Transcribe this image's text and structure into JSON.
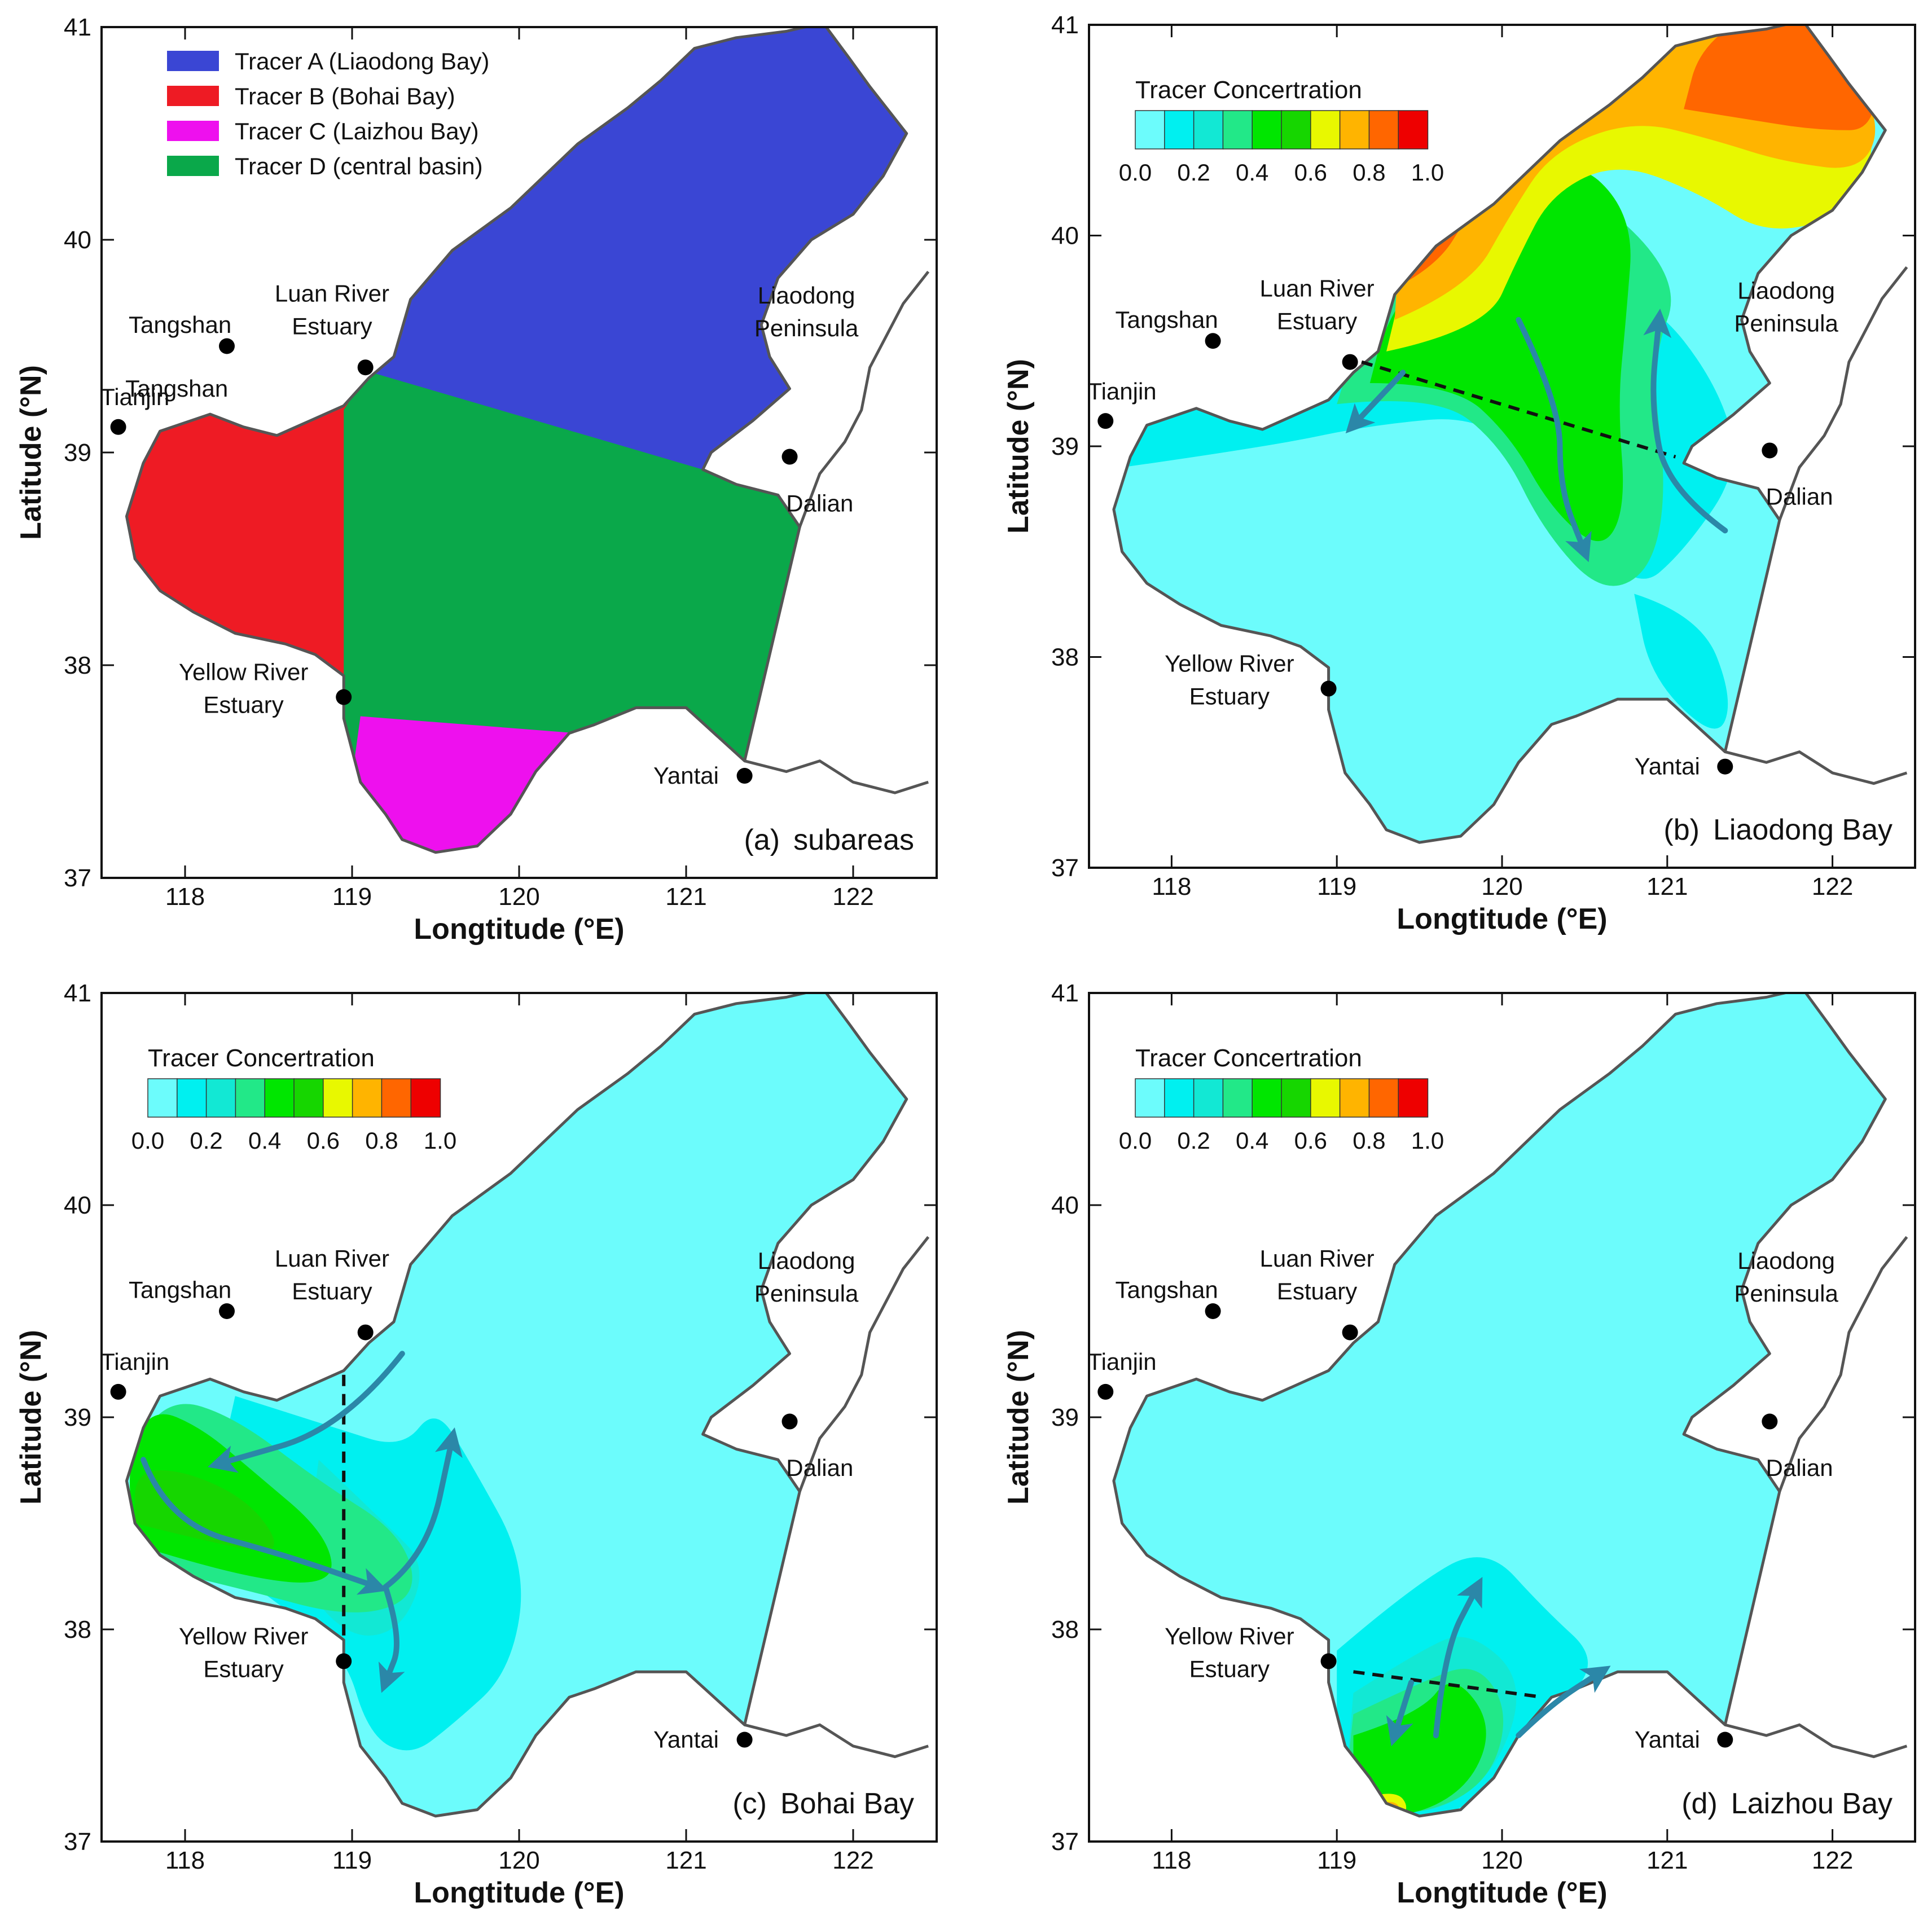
{
  "panels": [
    {
      "id": "a",
      "letter": "(a)",
      "caption": "subareas",
      "mode": "subareas",
      "legend_type": "subareas"
    },
    {
      "id": "b",
      "letter": "(b)",
      "caption": "Liaodong Bay",
      "mode": "liaodong",
      "legend_type": "colorbar"
    },
    {
      "id": "c",
      "letter": "(c)",
      "caption": "Bohai Bay",
      "mode": "bohai",
      "legend_type": "colorbar"
    },
    {
      "id": "d",
      "letter": "(d)",
      "caption": "Laizhou Bay",
      "mode": "laizhou",
      "legend_type": "colorbar"
    }
  ],
  "axes": {
    "x_label": "Longtitude (°E)",
    "y_label": "Latitude (°N)",
    "x_ticks": [
      "118",
      "119",
      "120",
      "121",
      "122"
    ],
    "x_tick_values": [
      118,
      119,
      120,
      121,
      122
    ],
    "y_ticks": [
      "37",
      "38",
      "39",
      "40",
      "41"
    ],
    "y_tick_values": [
      37,
      38,
      39,
      40,
      41
    ],
    "x_range": [
      117.5,
      122.5
    ],
    "y_range": [
      37,
      41
    ]
  },
  "subarea_legend": [
    {
      "label": "Tracer A (Liaodong Bay)",
      "color": "#3a46d4"
    },
    {
      "label": "Tracer B (Bohai Bay)",
      "color": "#ee1b24"
    },
    {
      "label": "Tracer C (Laizhou Bay)",
      "color": "#ee10ee"
    },
    {
      "label": "Tracer D (central basin)",
      "color": "#0aa84a"
    }
  ],
  "colorbar": {
    "title": "Tracer Concertration",
    "tick_labels": [
      "0.0",
      "0.2",
      "0.4",
      "0.6",
      "0.8",
      "1.0"
    ],
    "colors": [
      "#6cfcfc",
      "#00f0f0",
      "#12e8d4",
      "#22e888",
      "#00e600",
      "#16d600",
      "#e8f800",
      "#ffb400",
      "#ff6600",
      "#ee0000"
    ]
  },
  "places": {
    "tangshan": "Tangshan",
    "tangshan_extra": "Tangshan",
    "tianjin": "Tianjin",
    "luan_1": "Luan River",
    "luan_2": "Estuary",
    "liaodong_1": "Liaodong",
    "liaodong_2": "Peninsula",
    "dalian": "Dalian",
    "yellow_1": "Yellow River",
    "yellow_2": "Estuary",
    "yantai": "Yantai"
  },
  "colors": {
    "sea_low": "#6cfcfc",
    "land": "#ffffff",
    "coast": "#555555",
    "arrow": "#2b87a8"
  }
}
